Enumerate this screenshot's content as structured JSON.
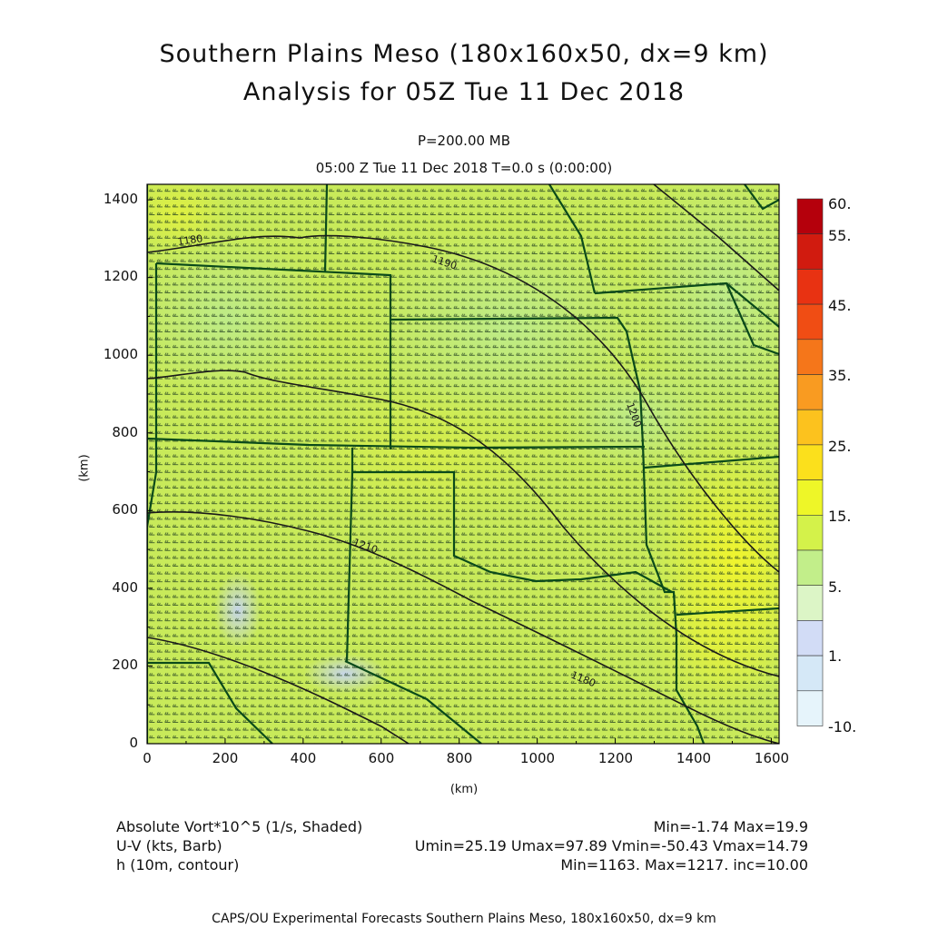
{
  "header": {
    "title_line1": "Southern Plains Meso (180x160x50, dx=9 km)",
    "title_line2": "Analysis for 05Z Tue 11 Dec 2018",
    "level": "P=200.00 MB",
    "valid_time": "05:00 Z Tue 11 Dec 2018   T=0.0 s (0:00:00)"
  },
  "axes": {
    "x_ticks": [
      "0",
      "200",
      "400",
      "600",
      "800",
      "1000",
      "1200",
      "1400",
      "1600"
    ],
    "y_ticks": [
      "0",
      "200",
      "400",
      "600",
      "800",
      "1000",
      "1200",
      "1400"
    ],
    "x_unit": "(km)",
    "y_unit": "(km)",
    "xlim": [
      0,
      1620
    ],
    "ylim": [
      0,
      1440
    ]
  },
  "colorbar": {
    "labels": [
      "60.",
      "55.",
      "45.",
      "35.",
      "25.",
      "15.",
      "5.",
      "1.",
      "-10."
    ],
    "colors": [
      "#b5000c",
      "#d11b0f",
      "#e83212",
      "#f04d14",
      "#f5761a",
      "#f99b21",
      "#fcc21e",
      "#fbe01c",
      "#eef628",
      "#d4f24a",
      "#c2ee8a",
      "#dcf5c6",
      "#d2dcf6",
      "#d5e8f7",
      "#e6f4fb"
    ]
  },
  "contours": {
    "labels": [
      "1180",
      "1190",
      "1200",
      "1210",
      "1180"
    ],
    "color": "#1a1a1a"
  },
  "map": {
    "boundary_color": "#0a4a1a",
    "barb_color": "#1a3a1a",
    "field_base_color": "#c8ea5a"
  },
  "footer": {
    "field1_name": "Absolute Vort*10^5 (1/s, Shaded)",
    "field1_stats": "Min=-1.74 Max=19.9",
    "field2_name": "U-V (kts, Barb)",
    "field2_stats": "Umin=25.19 Umax=97.89 Vmin=-50.43 Vmax=14.79",
    "field3_name": "h (10m, contour)",
    "field3_stats": "Min=1163. Max=1217. inc=10.00",
    "credit": "CAPS/OU Experimental Forecasts  Southern Plains Meso, 180x160x50, dx=9 km"
  }
}
